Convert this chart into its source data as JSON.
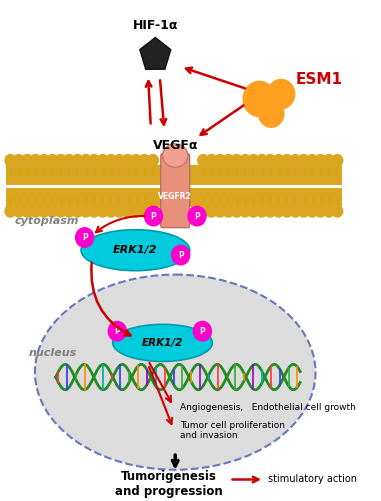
{
  "bg_color": "#ffffff",
  "cytoplasm_label": "cytoplasm",
  "nucleus_label": "nucleus",
  "hif1a_label": "HIF-1α",
  "esm1_label": "ESM1",
  "vegfa_label": "VEGFα",
  "vegfr2_label": "VEGFR2",
  "erk12_label": "ERK1/2",
  "p_label": "P",
  "angio_label": "Angiogenesis,   Endothelial cell growth",
  "tumor_label": "Tumor cell proliferation\nand invasion",
  "tumorigenesis_label": "Tumorigenesis\nand progression",
  "stimulatory_label": "stimulatory action",
  "arrow_color": "#cc0000",
  "black_arrow_color": "#000000",
  "erk_color": "#00CCDD",
  "vegfr2_color": "#E8917A",
  "p_color": "#FF00CC",
  "nucleus_fill": "#DCDCDC",
  "nucleus_edge": "#6677BB",
  "membrane_gold": "#DAA520",
  "membrane_light": "#F0C040"
}
